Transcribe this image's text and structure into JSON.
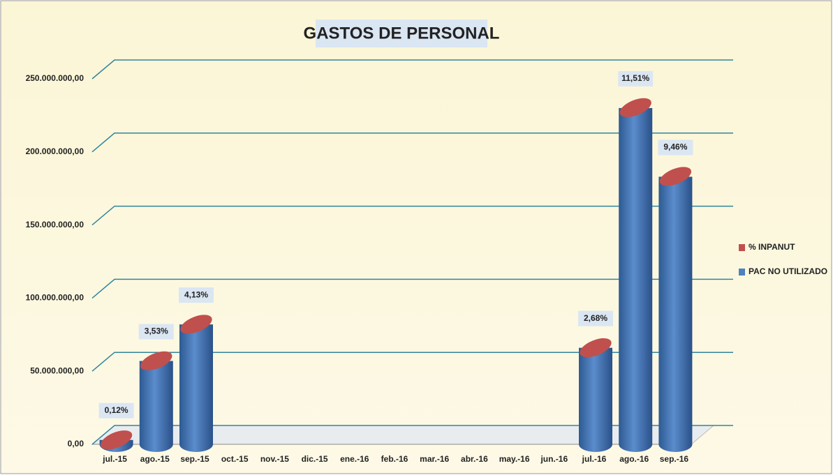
{
  "chart_data": {
    "type": "cylinder",
    "title": "GASTOS DE PERSONAL",
    "categories": [
      "jul.-15",
      "ago.-15",
      "sep.-15",
      "oct.-15",
      "nov.-15",
      "dic.-15",
      "ene.-16",
      "feb.-16",
      "mar.-16",
      "abr.-16",
      "may.-16",
      "jun.-16",
      "jul.-16",
      "ago.-16",
      "sep.-16"
    ],
    "series": [
      {
        "name": "% INPANUT",
        "color": "#c0504d",
        "values": [
          0.12,
          3.53,
          4.13,
          null,
          null,
          null,
          null,
          null,
          null,
          null,
          null,
          null,
          2.68,
          11.51,
          9.46
        ],
        "value_labels": [
          "0,12%",
          "3,53%",
          "4,13%",
          null,
          null,
          null,
          null,
          null,
          null,
          null,
          null,
          null,
          "2,68%",
          "11,51%",
          "9,46%"
        ]
      },
      {
        "name": "PAC NO UTILIZADO",
        "color": "#4f81bd",
        "values": [
          3000000,
          57000000,
          82000000,
          null,
          null,
          null,
          null,
          null,
          null,
          null,
          null,
          null,
          66000000,
          230000000,
          183000000
        ]
      }
    ],
    "ylim": [
      0,
      250000000
    ],
    "yticks": [
      {
        "value": 0,
        "label": "0,00"
      },
      {
        "value": 50000000,
        "label": "50.000.000,00"
      },
      {
        "value": 100000000,
        "label": "100.000.000,00"
      },
      {
        "value": 150000000,
        "label": "150.000.000,00"
      },
      {
        "value": 200000000,
        "label": "200.000.000,00"
      },
      {
        "value": 250000000,
        "label": "250.000.000,00"
      }
    ],
    "grid": true,
    "legend": "right"
  }
}
